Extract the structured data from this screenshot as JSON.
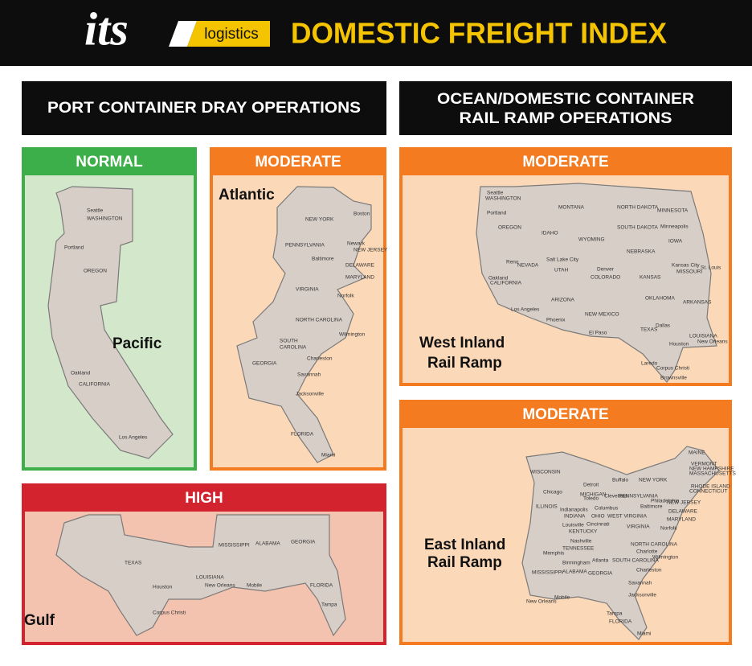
{
  "header": {
    "logo": "its",
    "logo_sub": "logistics",
    "title": "DOMESTIC FREIGHT INDEX"
  },
  "sections": [
    {
      "title": "PORT CONTAINER DRAY OPERATIONS"
    },
    {
      "title": [
        "OCEAN/DOMESTIC CONTAINER",
        "RAIL RAMP OPERATIONS"
      ]
    }
  ],
  "panels": [
    {
      "status": "NORMAL",
      "region": [
        "Pacific"
      ],
      "labels": [
        "Seattle",
        "WASHINGTON",
        "Portland",
        "OREGON",
        "Oakland",
        "CALIFORNIA",
        "Los Angeles"
      ]
    },
    {
      "status": "MODERATE",
      "region": [
        "Atlantic"
      ],
      "labels": [
        "NEW YORK",
        "Boston",
        "Newark",
        "PENNSYLVANIA",
        "NEW JERSEY",
        "Baltimore",
        "DELAWARE",
        "MARYLAND",
        "VIRGINIA",
        "Norfolk",
        "NORTH CAROLINA",
        "Wilmington",
        "SOUTH",
        "CAROLINA",
        "Charleston",
        "GEORGIA",
        "Savannah",
        "Jacksonville",
        "FLORIDA",
        "Miami"
      ]
    },
    {
      "status": "HIGH",
      "region": [
        "Gulf"
      ],
      "labels": [
        "TEXAS",
        "Houston",
        "Corpus Christi",
        "LOUISIANA",
        "New Orleans",
        "MISSISSIPPI",
        "ALABAMA",
        "Mobile",
        "GEORGIA",
        "FLORIDA",
        "Tampa"
      ]
    },
    {
      "status": "MODERATE",
      "region": [
        "West Inland",
        "Rail Ramp"
      ],
      "labels": [
        "Seattle",
        "WASHINGTON",
        "Portland",
        "OREGON",
        "IDAHO",
        "MONTANA",
        "WYOMING",
        "NORTH DAKOTA",
        "SOUTH DAKOTA",
        "MINNESOTA",
        "Minneapolis",
        "NEBRASKA",
        "IOWA",
        "Reno",
        "NEVADA",
        "Salt Lake City",
        "UTAH",
        "Denver",
        "COLORADO",
        "KANSAS",
        "Kansas City",
        "St. Louis",
        "MISSOURI",
        "Oakland",
        "CALIFORNIA",
        "Los Angeles",
        "ARIZONA",
        "Phoenix",
        "NEW MEXICO",
        "El Paso",
        "OKLAHOMA",
        "ARKANSAS",
        "TEXAS",
        "Dallas",
        "Houston",
        "LOUISIANA",
        "New Orleans",
        "Laredo",
        "Corpus Christi",
        "Brownsville"
      ]
    },
    {
      "status": "MODERATE",
      "region": [
        "East Inland",
        "Rail Ramp"
      ],
      "labels": [
        "MAINE",
        "WISCONSIN",
        "Detroit",
        "Buffalo",
        "NEW YORK",
        "VERMONT",
        "NEW HAMPSHIRE",
        "MASSACHUSETTS",
        "RHODE ISLAND",
        "CONNECTICUT",
        "Chicago",
        "MICHIGAN",
        "Toledo",
        "Cleveland",
        "PENNSYLVANIA",
        "Philadelphia",
        "Baltimore",
        "NEW JERSEY",
        "DELAWARE",
        "MARYLAND",
        "ILLINOIS",
        "INDIANA",
        "Indianapolis",
        "Columbus",
        "OHIO",
        "WEST VIRGINIA",
        "Cincinnati",
        "Louisville",
        "KENTUCKY",
        "VIRGINIA",
        "Norfolk",
        "Nashville",
        "TENNESSEE",
        "Memphis",
        "NORTH CAROLINA",
        "Charlotte",
        "Wilmington",
        "SOUTH CAROLINA",
        "Atlanta",
        "Birmingham",
        "ALABAMA",
        "GEORGIA",
        "MISSISSIPPI",
        "Charleston",
        "Savannah",
        "Jacksonville",
        "Mobile",
        "New Orleans",
        "Tampa",
        "FLORIDA",
        "Miami"
      ]
    }
  ]
}
